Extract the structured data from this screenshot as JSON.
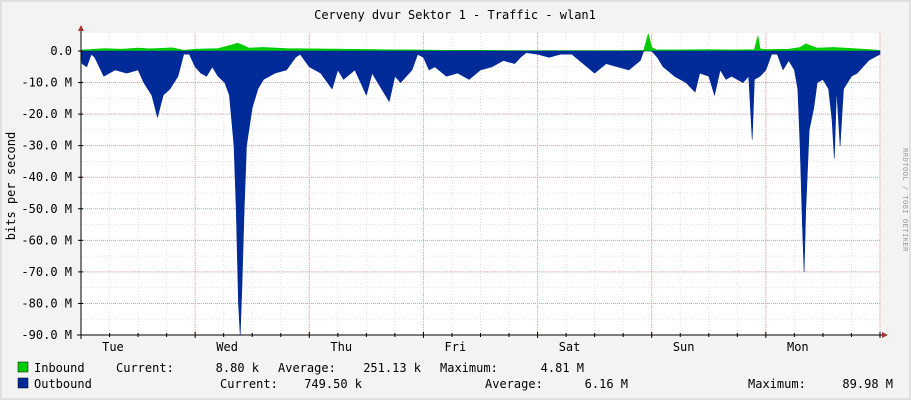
{
  "chart_data": {
    "type": "area",
    "title": "Cerveny dvur Sektor 1 - Traffic - wlan1",
    "ylabel": "bits per second",
    "ylim": [
      -90000000,
      5000000
    ],
    "yticks": [
      {
        "value": 0,
        "label": "0.0"
      },
      {
        "value": -10000000,
        "label": "-10.0 M"
      },
      {
        "value": -20000000,
        "label": "-20.0 M"
      },
      {
        "value": -30000000,
        "label": "-30.0 M"
      },
      {
        "value": -40000000,
        "label": "-40.0 M"
      },
      {
        "value": -50000000,
        "label": "-50.0 M"
      },
      {
        "value": -60000000,
        "label": "-60.0 M"
      },
      {
        "value": -70000000,
        "label": "-70.0 M"
      },
      {
        "value": -80000000,
        "label": "-80.0 M"
      },
      {
        "value": -90000000,
        "label": "-90.0 M"
      }
    ],
    "xlim": [
      0,
      7
    ],
    "xticks": [
      {
        "value": 0.28,
        "label": "Tue"
      },
      {
        "value": 1.28,
        "label": "Wed"
      },
      {
        "value": 2.28,
        "label": "Thu"
      },
      {
        "value": 3.28,
        "label": "Fri"
      },
      {
        "value": 4.28,
        "label": "Sat"
      },
      {
        "value": 5.28,
        "label": "Sun"
      },
      {
        "value": 6.28,
        "label": "Mon"
      }
    ],
    "grid": true,
    "legend_position": "bottom",
    "series": [
      {
        "name": "Inbound",
        "color": "#00cc00",
        "current": "8.80 k",
        "average": "251.13 k",
        "maximum": "4.81 M",
        "points": [
          [
            0.01,
            0.3
          ],
          [
            0.08,
            0.4
          ],
          [
            0.2,
            0.7
          ],
          [
            0.35,
            0.5
          ],
          [
            0.5,
            0.8
          ],
          [
            0.6,
            0.6
          ],
          [
            0.8,
            0.9
          ],
          [
            0.9,
            0.2
          ],
          [
            1.0,
            0.5
          ],
          [
            1.2,
            0.7
          ],
          [
            1.3,
            1.5
          ],
          [
            1.37,
            2.2
          ],
          [
            1.42,
            1.6
          ],
          [
            1.47,
            0.8
          ],
          [
            1.6,
            1.0
          ],
          [
            1.8,
            0.7
          ],
          [
            2.0,
            0.6
          ],
          [
            2.3,
            0.5
          ],
          [
            2.6,
            0.4
          ],
          [
            2.9,
            0.3
          ],
          [
            3.2,
            0.2
          ],
          [
            3.5,
            0.2
          ],
          [
            3.8,
            0.1
          ],
          [
            4.0,
            0.1
          ],
          [
            4.2,
            0.1
          ],
          [
            4.4,
            0.1
          ],
          [
            4.8,
            0.1
          ],
          [
            4.93,
            0.2
          ],
          [
            4.97,
            4.8
          ],
          [
            5.0,
            1.0
          ],
          [
            5.04,
            0.3
          ],
          [
            5.2,
            0.3
          ],
          [
            5.5,
            0.4
          ],
          [
            5.7,
            0.3
          ],
          [
            5.9,
            0.4
          ],
          [
            5.93,
            4.2
          ],
          [
            5.95,
            0.6
          ],
          [
            6.0,
            0.4
          ],
          [
            6.2,
            0.5
          ],
          [
            6.3,
            1.0
          ],
          [
            6.35,
            2.0
          ],
          [
            6.45,
            0.8
          ],
          [
            6.6,
            1.0
          ],
          [
            6.8,
            0.6
          ],
          [
            6.95,
            0.3
          ],
          [
            7.0,
            0.1
          ]
        ]
      },
      {
        "name": "Outbound",
        "color": "#002a97",
        "current": "749.50 k",
        "average": "6.16 M",
        "maximum": "89.98 M",
        "points": [
          [
            0.0,
            0
          ],
          [
            0.01,
            -4
          ],
          [
            0.05,
            -5
          ],
          [
            0.09,
            -1
          ],
          [
            0.12,
            -2
          ],
          [
            0.2,
            -8
          ],
          [
            0.3,
            -6
          ],
          [
            0.4,
            -7
          ],
          [
            0.5,
            -6
          ],
          [
            0.55,
            -10
          ],
          [
            0.62,
            -14
          ],
          [
            0.67,
            -21
          ],
          [
            0.72,
            -14
          ],
          [
            0.78,
            -12
          ],
          [
            0.85,
            -8
          ],
          [
            0.9,
            -1
          ],
          [
            0.95,
            -1
          ],
          [
            1.0,
            -5
          ],
          [
            1.05,
            -7
          ],
          [
            1.1,
            -8
          ],
          [
            1.15,
            -5
          ],
          [
            1.2,
            -8
          ],
          [
            1.26,
            -10
          ],
          [
            1.3,
            -14
          ],
          [
            1.34,
            -30
          ],
          [
            1.36,
            -50
          ],
          [
            1.38,
            -80
          ],
          [
            1.395,
            -90
          ],
          [
            1.41,
            -75
          ],
          [
            1.43,
            -50
          ],
          [
            1.45,
            -30
          ],
          [
            1.5,
            -18
          ],
          [
            1.55,
            -12
          ],
          [
            1.6,
            -9
          ],
          [
            1.7,
            -7
          ],
          [
            1.8,
            -6
          ],
          [
            1.88,
            -2
          ],
          [
            1.92,
            -1
          ],
          [
            2.0,
            -5
          ],
          [
            2.1,
            -7
          ],
          [
            2.2,
            -12
          ],
          [
            2.25,
            -6
          ],
          [
            2.3,
            -9
          ],
          [
            2.4,
            -6
          ],
          [
            2.5,
            -14
          ],
          [
            2.55,
            -7
          ],
          [
            2.6,
            -10
          ],
          [
            2.7,
            -16
          ],
          [
            2.75,
            -8
          ],
          [
            2.8,
            -10
          ],
          [
            2.9,
            -6
          ],
          [
            2.95,
            -1
          ],
          [
            3.0,
            -2
          ],
          [
            3.05,
            -6
          ],
          [
            3.1,
            -5
          ],
          [
            3.2,
            -8
          ],
          [
            3.3,
            -7
          ],
          [
            3.4,
            -9
          ],
          [
            3.5,
            -6
          ],
          [
            3.6,
            -5
          ],
          [
            3.7,
            -3
          ],
          [
            3.8,
            -4
          ],
          [
            3.85,
            -2
          ],
          [
            3.9,
            -0.5
          ],
          [
            4.0,
            -1
          ],
          [
            4.1,
            -2
          ],
          [
            4.2,
            -1
          ],
          [
            4.3,
            -1
          ],
          [
            4.4,
            -4
          ],
          [
            4.5,
            -7
          ],
          [
            4.6,
            -4
          ],
          [
            4.7,
            -5
          ],
          [
            4.8,
            -6
          ],
          [
            4.9,
            -3
          ],
          [
            4.93,
            0
          ],
          [
            5.0,
            0
          ],
          [
            5.05,
            -2
          ],
          [
            5.1,
            -5
          ],
          [
            5.2,
            -8
          ],
          [
            5.3,
            -10
          ],
          [
            5.38,
            -13
          ],
          [
            5.42,
            -7
          ],
          [
            5.5,
            -8
          ],
          [
            5.55,
            -14
          ],
          [
            5.6,
            -6
          ],
          [
            5.65,
            -9
          ],
          [
            5.7,
            -8
          ],
          [
            5.8,
            -10
          ],
          [
            5.85,
            -8
          ],
          [
            5.88,
            -28
          ],
          [
            5.9,
            -9
          ],
          [
            5.95,
            -8
          ],
          [
            6.0,
            -6
          ],
          [
            6.05,
            -1
          ],
          [
            6.1,
            -1
          ],
          [
            6.15,
            -6
          ],
          [
            6.2,
            -3
          ],
          [
            6.25,
            -6
          ],
          [
            6.28,
            -12
          ],
          [
            6.3,
            -30
          ],
          [
            6.32,
            -55
          ],
          [
            6.335,
            -70
          ],
          [
            6.35,
            -50
          ],
          [
            6.38,
            -25
          ],
          [
            6.42,
            -18
          ],
          [
            6.45,
            -10
          ],
          [
            6.5,
            -9
          ],
          [
            6.55,
            -12
          ],
          [
            6.58,
            -22
          ],
          [
            6.6,
            -34
          ],
          [
            6.62,
            -12
          ],
          [
            6.65,
            -30
          ],
          [
            6.68,
            -12
          ],
          [
            6.75,
            -8
          ],
          [
            6.8,
            -7
          ],
          [
            6.85,
            -5
          ],
          [
            6.9,
            -3
          ],
          [
            6.95,
            -2
          ],
          [
            7.0,
            -1
          ]
        ]
      }
    ]
  },
  "side_label": "RRDTOOL / TOBI OETIKER",
  "legend": {
    "inbound": {
      "name": "Inbound",
      "current_label": "Current:",
      "current": "8.80 k",
      "average_label": "Average:",
      "average": "251.13 k",
      "maximum_label": "Maximum:",
      "maximum": "4.81 M"
    },
    "outbound": {
      "name": "Outbound",
      "current_label": "Current:",
      "current": "749.50 k",
      "average_label": "Average:",
      "average": "6.16 M",
      "maximum_label": "Maximum:",
      "maximum": "89.98 M"
    }
  },
  "colors": {
    "background": "#f3f3f3",
    "canvas": "#ffffff",
    "grid_minor": "#e0e0e0",
    "grid_major": "#e8a0a0",
    "axis": "#000000",
    "arrow": "#aa3333",
    "inbound": "#00cc00",
    "outbound": "#002a97"
  }
}
